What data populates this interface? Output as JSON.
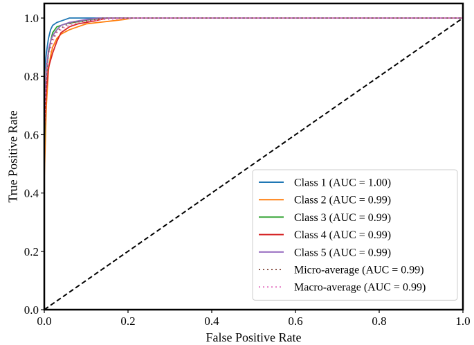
{
  "chart_data": {
    "type": "line",
    "title": "",
    "xlabel": "False Positive Rate",
    "ylabel": "True Positive Rate",
    "xlim": [
      0.0,
      1.0
    ],
    "ylim": [
      0.0,
      1.05
    ],
    "xticks": [
      0.0,
      0.2,
      0.4,
      0.6,
      0.8,
      1.0
    ],
    "yticks": [
      0.0,
      0.2,
      0.4,
      0.6,
      0.8,
      1.0
    ],
    "xtick_labels": [
      "0.0",
      "0.2",
      "0.4",
      "0.6",
      "0.8",
      "1.0"
    ],
    "ytick_labels": [
      "0.0",
      "0.2",
      "0.4",
      "0.6",
      "0.8",
      "1.0"
    ],
    "grid": false,
    "legend_position": "lower-right",
    "series": [
      {
        "name": "Class 1 (AUC = 1.00)",
        "color": "#1f77b4",
        "style": "solid",
        "x": [
          0,
          0,
          0.005,
          0.01,
          0.015,
          0.02,
          0.03,
          0.04,
          0.05,
          0.06,
          0.07,
          1.0
        ],
        "y": [
          0,
          0.8,
          0.88,
          0.93,
          0.96,
          0.975,
          0.985,
          0.99,
          0.995,
          1.0,
          1.0,
          1.0
        ]
      },
      {
        "name": "Class 2 (AUC = 0.99)",
        "color": "#ff7f0e",
        "style": "solid",
        "x": [
          0,
          0,
          0.005,
          0.01,
          0.015,
          0.02,
          0.03,
          0.04,
          0.06,
          0.08,
          0.1,
          0.13,
          0.16,
          0.19,
          0.21,
          1.0
        ],
        "y": [
          0,
          0.45,
          0.7,
          0.82,
          0.87,
          0.9,
          0.93,
          0.945,
          0.96,
          0.97,
          0.98,
          0.985,
          0.99,
          0.995,
          1.0,
          1.0
        ]
      },
      {
        "name": "Class 3 (AUC = 0.99)",
        "color": "#2ca02c",
        "style": "solid",
        "x": [
          0,
          0,
          0.005,
          0.01,
          0.015,
          0.02,
          0.03,
          0.05,
          0.07,
          0.09,
          0.11,
          0.14,
          1.0
        ],
        "y": [
          0,
          0.55,
          0.8,
          0.88,
          0.92,
          0.95,
          0.97,
          0.98,
          0.985,
          0.99,
          0.995,
          1.0,
          1.0
        ]
      },
      {
        "name": "Class 4 (AUC = 0.99)",
        "color": "#d62728",
        "style": "solid",
        "x": [
          0,
          0,
          0.005,
          0.01,
          0.02,
          0.03,
          0.04,
          0.06,
          0.08,
          0.1,
          0.12,
          0.15,
          1.0
        ],
        "y": [
          0,
          0.6,
          0.75,
          0.83,
          0.88,
          0.92,
          0.95,
          0.97,
          0.98,
          0.985,
          0.99,
          1.0,
          1.0
        ]
      },
      {
        "name": "Class 5 (AUC = 0.99)",
        "color": "#9467bd",
        "style": "solid",
        "x": [
          0,
          0,
          0.005,
          0.01,
          0.015,
          0.02,
          0.03,
          0.04,
          0.06,
          0.08,
          0.1,
          0.13,
          1.0
        ],
        "y": [
          0,
          0.7,
          0.82,
          0.89,
          0.92,
          0.94,
          0.96,
          0.975,
          0.985,
          0.99,
          0.995,
          1.0,
          1.0
        ]
      },
      {
        "name": "Micro-average (AUC = 0.99)",
        "color": "#8c564b",
        "style": "dotted",
        "x": [
          0,
          0,
          0.005,
          0.01,
          0.02,
          0.03,
          0.05,
          0.07,
          0.1,
          0.14,
          1.0
        ],
        "y": [
          0,
          0.65,
          0.82,
          0.88,
          0.93,
          0.955,
          0.975,
          0.985,
          0.99,
          1.0,
          1.0
        ]
      },
      {
        "name": "Macro-average (AUC = 0.99)",
        "color": "#e377c2",
        "style": "dotted",
        "x": [
          0,
          0,
          0.005,
          0.01,
          0.02,
          0.03,
          0.05,
          0.07,
          0.1,
          0.14,
          0.21,
          1.0
        ],
        "y": [
          0,
          0.62,
          0.8,
          0.87,
          0.92,
          0.95,
          0.97,
          0.98,
          0.99,
          0.995,
          1.0,
          1.0
        ]
      },
      {
        "name": "Chance",
        "color": "#000000",
        "style": "dashed",
        "legend": false,
        "x": [
          0,
          1
        ],
        "y": [
          0,
          1
        ]
      }
    ]
  }
}
